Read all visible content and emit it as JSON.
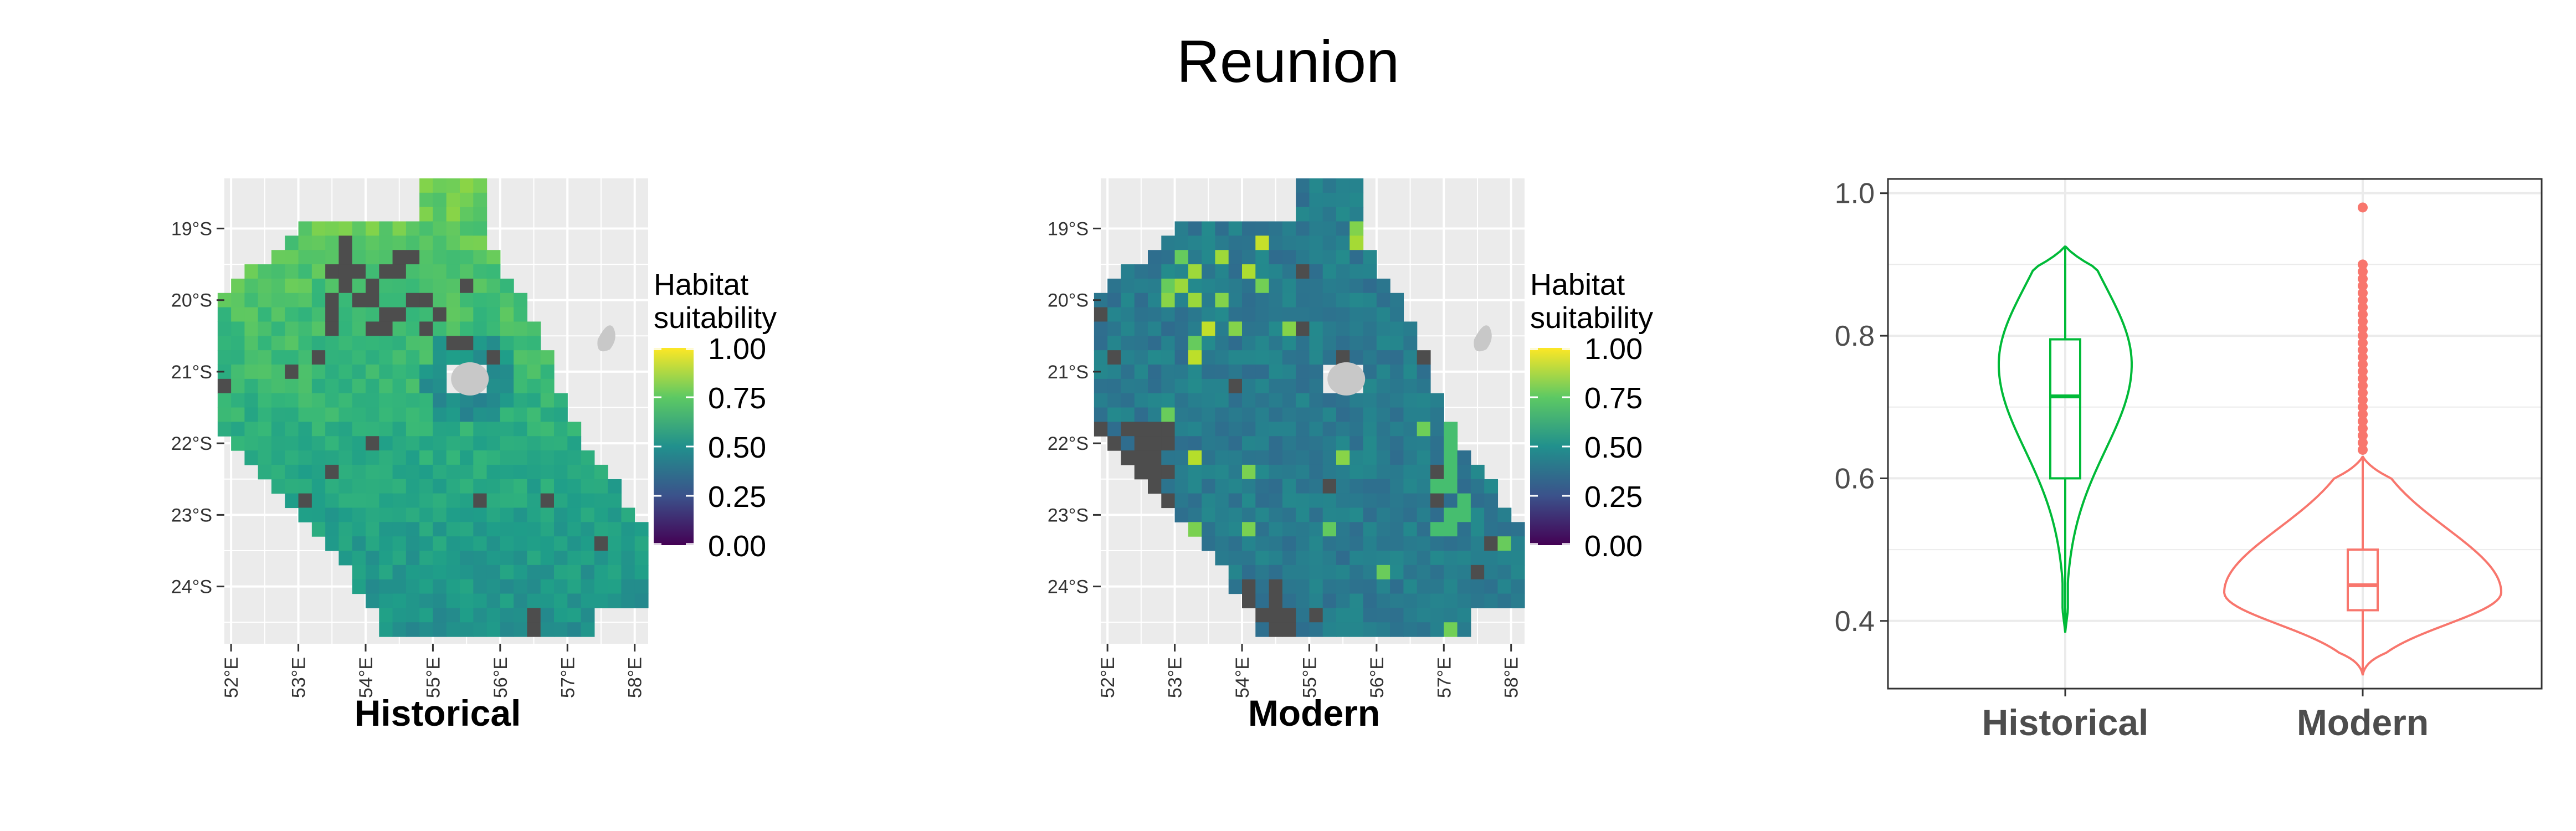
{
  "figure": {
    "title": "Reunion"
  },
  "chart_data": [
    {
      "type": "heatmap",
      "panel_label": "Historical",
      "x_ticks": [
        "52°E",
        "53°E",
        "54°E",
        "55°E",
        "56°E",
        "57°E",
        "58°E"
      ],
      "y_ticks": [
        "19°S",
        "20°S",
        "21°S",
        "22°S",
        "23°S",
        "24°S"
      ],
      "xlim": [
        51.9,
        58.2
      ],
      "ylim": [
        -24.8,
        -18.3
      ],
      "legend": {
        "title_line1": "Habitat",
        "title_line2": "suitability",
        "breaks": [
          "1.00",
          "0.75",
          "0.50",
          "0.25",
          "0.00"
        ],
        "placement": "right"
      },
      "missing_color": "#4d4d4d",
      "land_color": "#c8c8c8",
      "panel_background": "#ebebeb",
      "grid": true,
      "approx_mean_value": 0.7
    },
    {
      "type": "heatmap",
      "panel_label": "Modern",
      "x_ticks": [
        "52°E",
        "53°E",
        "54°E",
        "55°E",
        "56°E",
        "57°E",
        "58°E"
      ],
      "y_ticks": [
        "19°S",
        "20°S",
        "21°S",
        "22°S",
        "23°S",
        "24°S"
      ],
      "xlim": [
        51.9,
        58.2
      ],
      "ylim": [
        -24.8,
        -18.3
      ],
      "legend": {
        "title_line1": "Habitat",
        "title_line2": "suitability",
        "breaks": [
          "1.00",
          "0.75",
          "0.50",
          "0.25",
          "0.00"
        ],
        "placement": "right"
      },
      "missing_color": "#4d4d4d",
      "land_color": "#c8c8c8",
      "panel_background": "#ebebeb",
      "grid": true,
      "approx_mean_value": 0.46
    },
    {
      "type": "violin",
      "categories": [
        "Historical",
        "Modern"
      ],
      "y_ticks": [
        "0.4",
        "0.6",
        "0.8",
        "1.0"
      ],
      "ylim": [
        0.32,
        1.0
      ],
      "grid": true,
      "series": [
        {
          "category": "Historical",
          "color": "#00ba38",
          "min": 0.385,
          "q1": 0.6,
          "median": 0.715,
          "q3": 0.795,
          "max": 0.925,
          "outliers": []
        },
        {
          "category": "Modern",
          "color": "#f8766d",
          "min": 0.325,
          "q1": 0.415,
          "median": 0.45,
          "q3": 0.5,
          "max": 0.63,
          "outliers": [
            0.64,
            0.65,
            0.66,
            0.67,
            0.68,
            0.69,
            0.7,
            0.71,
            0.72,
            0.73,
            0.74,
            0.75,
            0.76,
            0.77,
            0.78,
            0.79,
            0.8,
            0.81,
            0.82,
            0.83,
            0.84,
            0.85,
            0.86,
            0.87,
            0.88,
            0.89,
            0.9,
            0.98
          ]
        }
      ]
    }
  ]
}
